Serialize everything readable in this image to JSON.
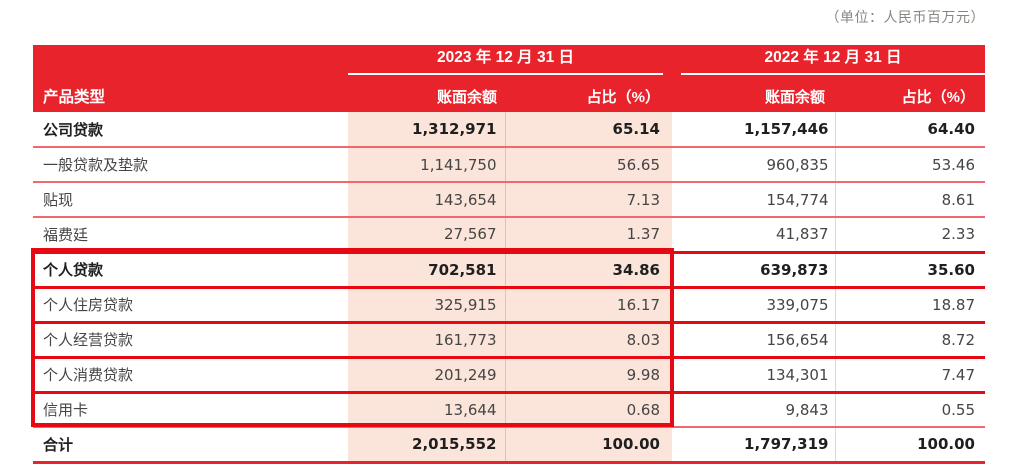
{
  "unit_note": "（单位：人民币百万元）",
  "colors": {
    "header_red": "#e8232b",
    "column_pink": "#fbe4da",
    "row_separator": "#ee686c",
    "highlight_red": "#e60914",
    "unit_note_gray": "#8b8680"
  },
  "table": {
    "product_type_header": "产品类型",
    "groups": [
      {
        "period": "2023 年 12 月 31 日",
        "columns": [
          "账面余额",
          "占比（%）"
        ]
      },
      {
        "period": "2022 年 12 月 31 日",
        "columns": [
          "账面余额",
          "占比（%）"
        ]
      }
    ],
    "rows": [
      {
        "label": "公司贷款",
        "bold": true,
        "highlighted": false,
        "values": [
          "1,312,971",
          "65.14",
          "1,157,446",
          "64.40"
        ]
      },
      {
        "label": "一般贷款及垫款",
        "bold": false,
        "highlighted": false,
        "values": [
          "1,141,750",
          "56.65",
          "960,835",
          "53.46"
        ]
      },
      {
        "label": "贴现",
        "bold": false,
        "highlighted": false,
        "values": [
          "143,654",
          "7.13",
          "154,774",
          "8.61"
        ]
      },
      {
        "label": "福费廷",
        "bold": false,
        "highlighted": false,
        "values": [
          "27,567",
          "1.37",
          "41,837",
          "2.33"
        ]
      },
      {
        "label": "个人贷款",
        "bold": true,
        "highlighted": true,
        "values": [
          "702,581",
          "34.86",
          "639,873",
          "35.60"
        ]
      },
      {
        "label": "个人住房贷款",
        "bold": false,
        "highlighted": true,
        "values": [
          "325,915",
          "16.17",
          "339,075",
          "18.87"
        ]
      },
      {
        "label": "个人经营贷款",
        "bold": false,
        "highlighted": true,
        "values": [
          "161,773",
          "8.03",
          "156,654",
          "8.72"
        ]
      },
      {
        "label": "个人消费贷款",
        "bold": false,
        "highlighted": true,
        "values": [
          "201,249",
          "9.98",
          "134,301",
          "7.47"
        ]
      },
      {
        "label": "信用卡",
        "bold": false,
        "highlighted": true,
        "values": [
          "13,644",
          "0.68",
          "9,843",
          "0.55"
        ]
      },
      {
        "label": "合计",
        "bold": true,
        "highlighted": false,
        "values": [
          "2,015,552",
          "100.00",
          "1,797,319",
          "100.00"
        ]
      }
    ],
    "highlight_annotation": {
      "from_label": "个人贷款",
      "to_label": "信用卡",
      "covers": "product-type and 2023 columns"
    }
  }
}
